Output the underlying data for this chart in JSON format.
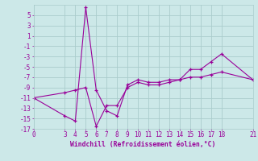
{
  "xlabel": "Windchill (Refroidissement éolien,°C)",
  "background_color": "#cce8e8",
  "grid_color": "#aacccc",
  "line_color": "#990099",
  "xlim": [
    0,
    21
  ],
  "ylim": [
    -17,
    7
  ],
  "yticks": [
    5,
    3,
    1,
    -1,
    -3,
    -5,
    -7,
    -9,
    -11,
    -13,
    -15,
    -17
  ],
  "xticks": [
    0,
    3,
    4,
    5,
    6,
    7,
    8,
    9,
    10,
    11,
    12,
    13,
    14,
    15,
    16,
    17,
    18,
    21
  ],
  "series1_x": [
    0,
    3,
    4,
    5,
    6,
    7,
    8,
    9,
    10,
    11,
    12,
    13,
    14,
    15,
    16,
    17,
    18,
    21
  ],
  "series1_y": [
    -11.0,
    -14.5,
    -15.5,
    6.5,
    -9.5,
    -13.5,
    -14.5,
    -8.5,
    -7.5,
    -8.0,
    -8.0,
    -7.5,
    -7.5,
    -5.5,
    -5.5,
    -4.0,
    -2.5,
    -7.5
  ],
  "series2_x": [
    0,
    3,
    4,
    5,
    6,
    7,
    8,
    9,
    10,
    11,
    12,
    13,
    14,
    15,
    16,
    17,
    18,
    21
  ],
  "series2_y": [
    -11.0,
    -10.0,
    -9.5,
    -9.0,
    -16.5,
    -12.5,
    -12.5,
    -9.0,
    -8.0,
    -8.5,
    -8.5,
    -8.0,
    -7.5,
    -7.0,
    -7.0,
    -6.5,
    -6.0,
    -7.5
  ],
  "marker": "+",
  "xlabel_fontsize": 5.8,
  "tick_fontsize": 5.5,
  "linewidth": 0.8,
  "markersize": 3,
  "markeredgewidth": 0.9
}
